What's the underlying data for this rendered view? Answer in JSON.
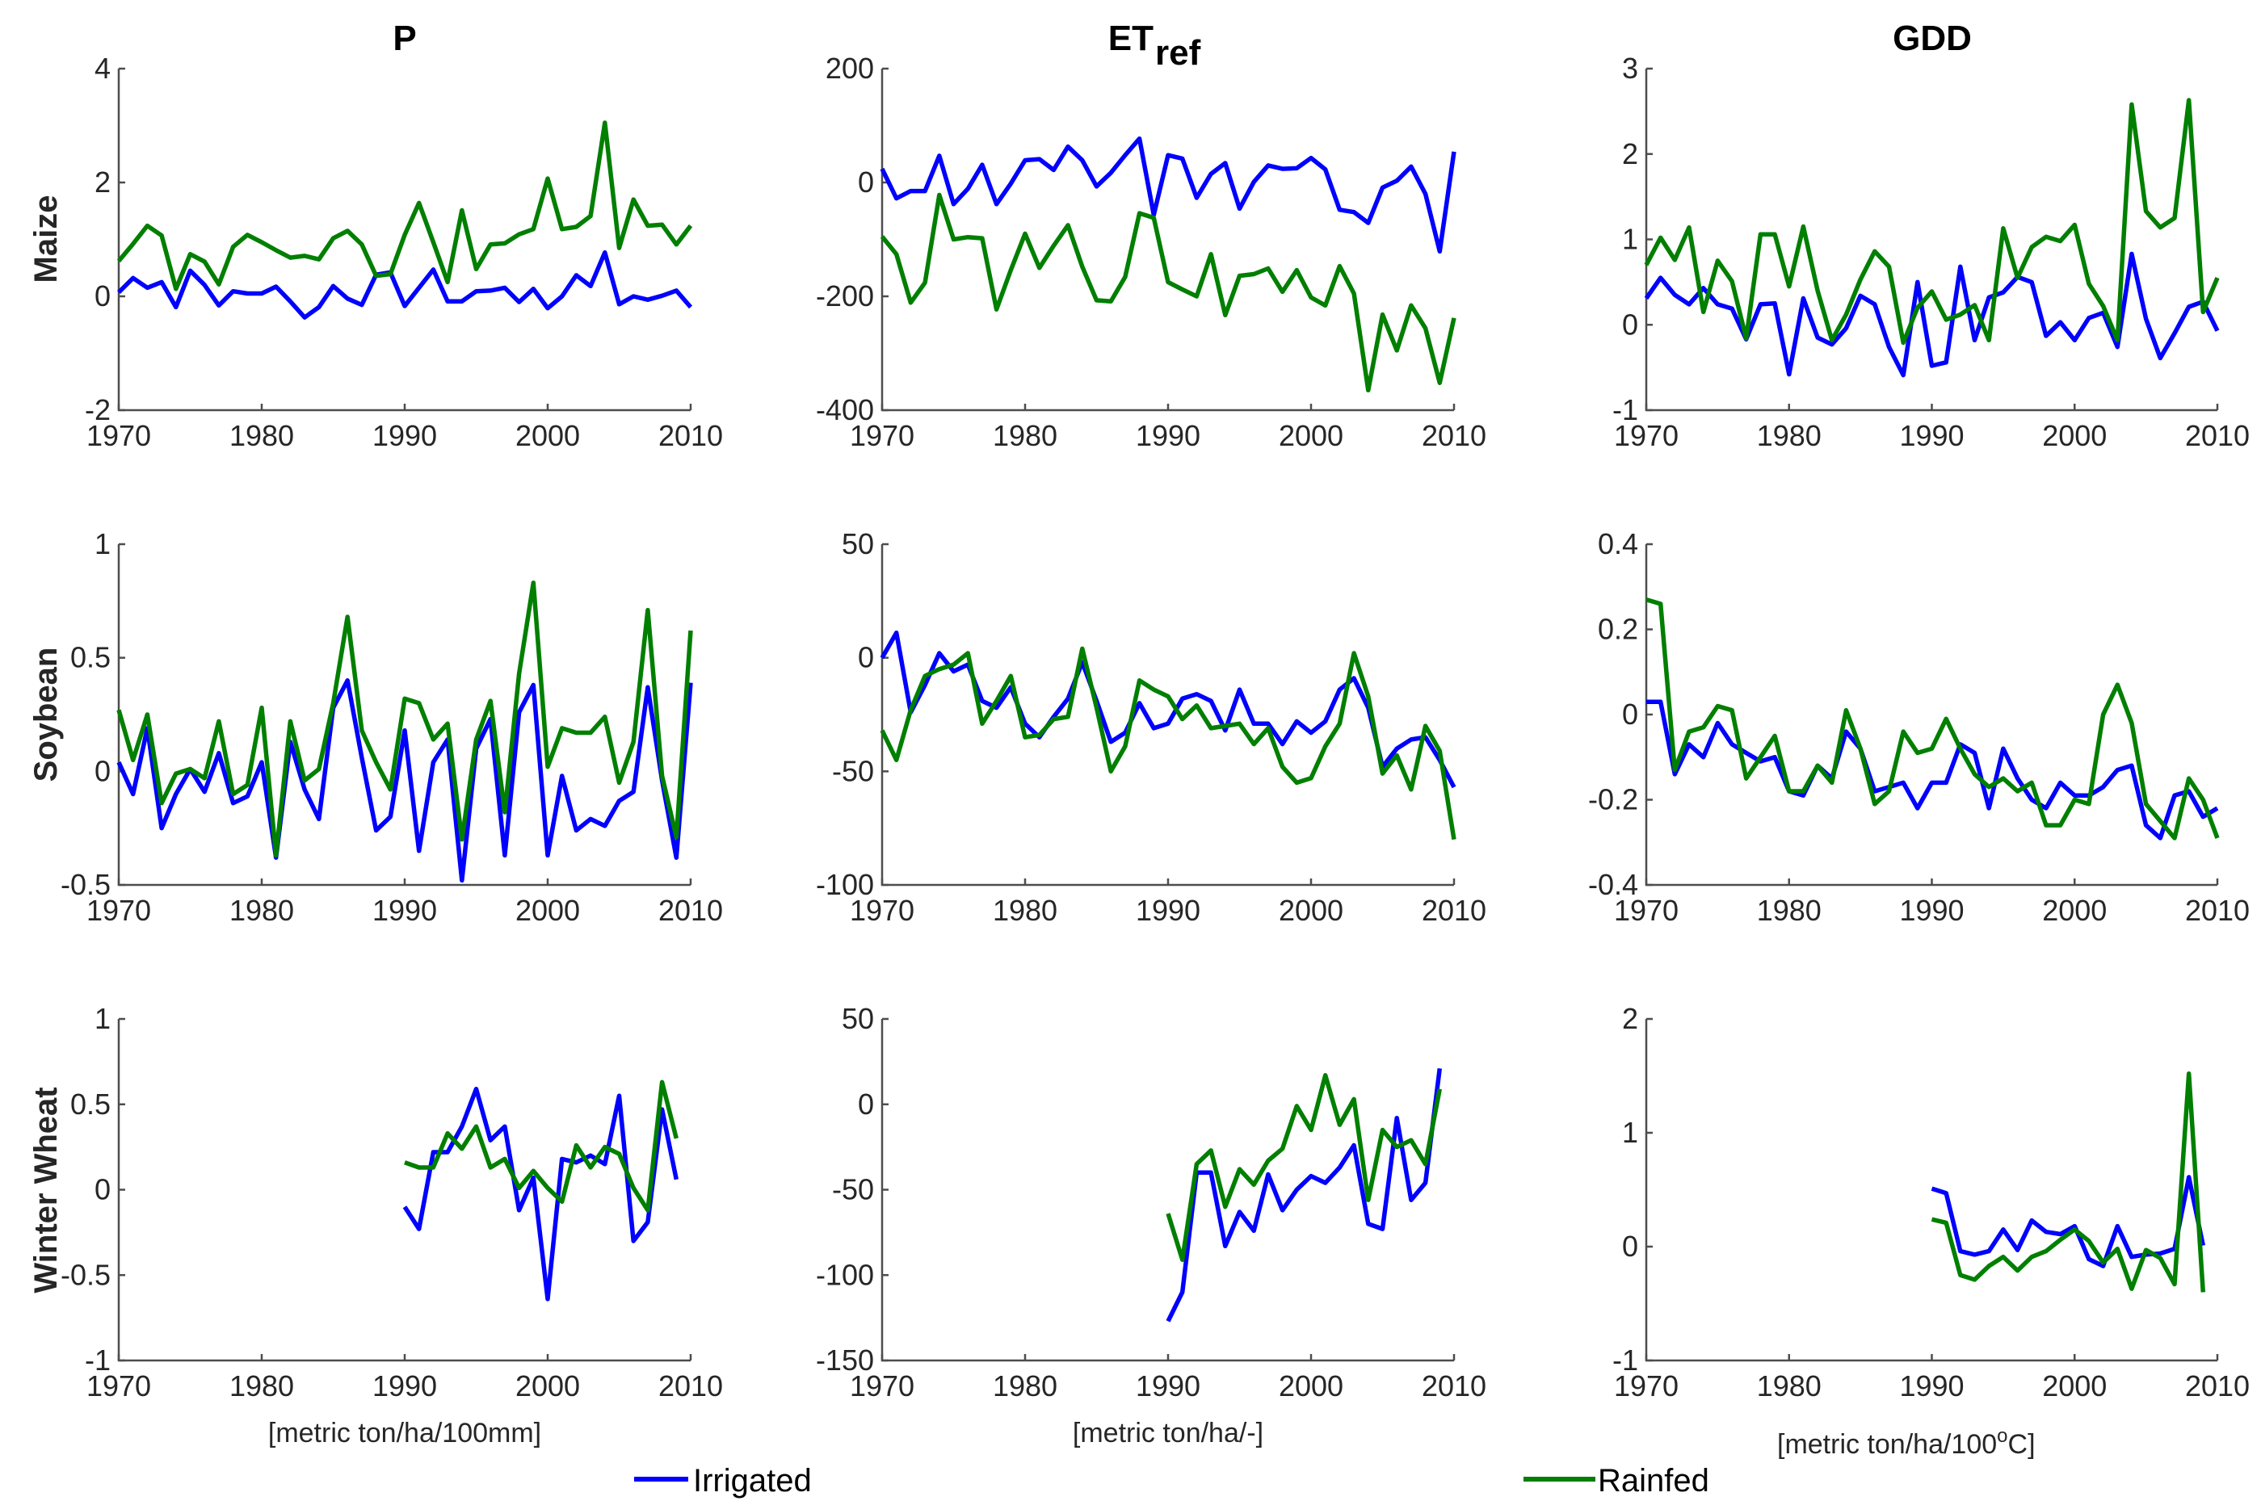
{
  "figure": {
    "legend": [
      {
        "name": "Irrigated",
        "color": "#0000ff"
      },
      {
        "name": "Rainfed",
        "color": "#007f00"
      }
    ],
    "column_titles": [
      {
        "main": "P",
        "sub": ""
      },
      {
        "main": "ET",
        "sub": "ref"
      },
      {
        "main": "GDD",
        "sub": ""
      }
    ],
    "row_titles": [
      "Maize",
      "Soybean",
      "Winter Wheat"
    ],
    "unit_labels": [
      {
        "text": "[metric ton/ha/100mm]",
        "sup": "",
        "tail": ""
      },
      {
        "text": "[metric ton/ha/-]",
        "sup": "",
        "tail": ""
      },
      {
        "text": "[metric ton/ha/100",
        "sup": "o",
        "tail": "C]"
      }
    ]
  },
  "chart_data": [
    {
      "type": "line",
      "title": "P",
      "ylabel": "Maize",
      "row": 0,
      "col": 0,
      "xlim": [
        1970,
        2010
      ],
      "xticks": [
        1970,
        1980,
        1990,
        2000,
        2010
      ],
      "ylim": [
        -2,
        4
      ],
      "yticks": [
        -2,
        0,
        2,
        4
      ],
      "ytick_labels": [
        "-2",
        "0",
        "2",
        "4"
      ],
      "x_start": 1970,
      "series": [
        {
          "name": "Irrigated",
          "values": [
            0.07,
            0.32,
            0.15,
            0.25,
            -0.19,
            0.45,
            0.2,
            -0.16,
            0.09,
            0.05,
            0.05,
            0.17,
            -0.09,
            -0.37,
            -0.19,
            0.18,
            -0.04,
            -0.15,
            0.38,
            0.42,
            -0.17,
            0.15,
            0.47,
            -0.09,
            -0.09,
            0.09,
            0.1,
            0.15,
            -0.1,
            0.13,
            -0.21,
            0.0,
            0.37,
            0.18,
            0.77,
            -0.14,
            0.0,
            -0.06,
            0.01,
            0.1,
            -0.19
          ]
        },
        {
          "name": "Rainfed",
          "values": [
            0.62,
            0.92,
            1.24,
            1.07,
            0.13,
            0.74,
            0.61,
            0.21,
            0.87,
            1.08,
            0.95,
            0.81,
            0.68,
            0.71,
            0.65,
            1.02,
            1.15,
            0.91,
            0.36,
            0.39,
            1.08,
            1.64,
            0.95,
            0.25,
            1.51,
            0.48,
            0.91,
            0.93,
            1.09,
            1.18,
            2.07,
            1.18,
            1.22,
            1.41,
            3.05,
            0.85,
            1.7,
            1.24,
            1.26,
            0.91,
            1.24
          ]
        }
      ]
    },
    {
      "type": "line",
      "title": "ETref",
      "ylabel": "Maize",
      "row": 0,
      "col": 1,
      "xlim": [
        1970,
        2010
      ],
      "xticks": [
        1970,
        1980,
        1990,
        2000,
        2010
      ],
      "ylim": [
        -400,
        200
      ],
      "yticks": [
        -400,
        -200,
        0,
        200
      ],
      "ytick_labels": [
        "-400",
        "-200",
        "0",
        "200"
      ],
      "x_start": 1970,
      "series": [
        {
          "name": "Irrigated",
          "values": [
            24,
            -28,
            -15,
            -15,
            47,
            -38,
            -11,
            31,
            -38,
            -2,
            39,
            41,
            22,
            63,
            39,
            -7,
            17,
            48,
            77,
            -57,
            48,
            42,
            -27,
            15,
            34,
            -46,
            1,
            30,
            24,
            25,
            43,
            23,
            -48,
            -52,
            -71,
            -9,
            3,
            28,
            -20,
            -121,
            54
          ]
        },
        {
          "name": "Rainfed",
          "values": [
            -95,
            -126,
            -211,
            -176,
            -22,
            -100,
            -96,
            -98,
            -223,
            -154,
            -90,
            -150,
            -111,
            -75,
            -148,
            -207,
            -209,
            -166,
            -54,
            -62,
            -175,
            -188,
            -200,
            -126,
            -233,
            -164,
            -161,
            -151,
            -192,
            -154,
            -202,
            -216,
            -147,
            -195,
            -365,
            -232,
            -295,
            -216,
            -256,
            -352,
            -238
          ]
        }
      ]
    },
    {
      "type": "line",
      "title": "GDD",
      "ylabel": "Maize",
      "row": 0,
      "col": 2,
      "xlim": [
        1970,
        2010
      ],
      "xticks": [
        1970,
        1980,
        1990,
        2000,
        2010
      ],
      "ylim": [
        -1,
        3
      ],
      "yticks": [
        -1,
        0,
        1,
        2,
        3
      ],
      "ytick_labels": [
        "-1",
        "0",
        "1",
        "2",
        "3"
      ],
      "x_start": 1970,
      "series": [
        {
          "name": "Irrigated",
          "values": [
            0.31,
            0.55,
            0.35,
            0.24,
            0.43,
            0.24,
            0.19,
            -0.17,
            0.24,
            0.25,
            -0.58,
            0.31,
            -0.15,
            -0.23,
            -0.04,
            0.34,
            0.24,
            -0.26,
            -0.59,
            0.5,
            -0.48,
            -0.44,
            0.68,
            -0.18,
            0.32,
            0.38,
            0.56,
            0.5,
            -0.13,
            0.03,
            -0.18,
            0.08,
            0.14,
            -0.26,
            0.83,
            0.07,
            -0.39,
            -0.1,
            0.21,
            0.27,
            -0.07
          ]
        },
        {
          "name": "Rainfed",
          "values": [
            0.7,
            1.02,
            0.76,
            1.14,
            0.15,
            0.75,
            0.51,
            -0.16,
            1.06,
            1.06,
            0.45,
            1.15,
            0.4,
            -0.18,
            0.12,
            0.53,
            0.86,
            0.68,
            -0.21,
            0.2,
            0.39,
            0.06,
            0.12,
            0.23,
            -0.18,
            1.13,
            0.55,
            0.91,
            1.03,
            0.98,
            1.17,
            0.48,
            0.22,
            -0.18,
            2.58,
            1.33,
            1.14,
            1.25,
            2.63,
            0.15,
            0.55
          ]
        }
      ]
    },
    {
      "type": "line",
      "title": "P",
      "ylabel": "Soybean",
      "row": 1,
      "col": 0,
      "xlim": [
        1970,
        2010
      ],
      "xticks": [
        1970,
        1980,
        1990,
        2000,
        2010
      ],
      "ylim": [
        -0.5,
        1
      ],
      "yticks": [
        -0.5,
        0,
        0.5,
        1
      ],
      "ytick_labels": [
        "-0.5",
        "0",
        "0.5",
        "1"
      ],
      "x_start": 1970,
      "series": [
        {
          "name": "Irrigated",
          "values": [
            0.04,
            -0.1,
            0.19,
            -0.25,
            -0.1,
            0.01,
            -0.09,
            0.08,
            -0.14,
            -0.11,
            0.04,
            -0.38,
            0.13,
            -0.08,
            -0.21,
            0.28,
            0.4,
            0.06,
            -0.26,
            -0.2,
            0.18,
            -0.35,
            0.04,
            0.14,
            -0.48,
            0.1,
            0.23,
            -0.37,
            0.26,
            0.38,
            -0.37,
            -0.02,
            -0.26,
            -0.21,
            -0.24,
            -0.13,
            -0.09,
            0.37,
            -0.04,
            -0.38,
            0.39
          ]
        },
        {
          "name": "Rainfed",
          "values": [
            0.27,
            0.05,
            0.25,
            -0.14,
            -0.01,
            0.01,
            -0.03,
            0.22,
            -0.1,
            -0.06,
            0.28,
            -0.37,
            0.22,
            -0.04,
            0.01,
            0.3,
            0.68,
            0.18,
            0.04,
            -0.08,
            0.32,
            0.3,
            0.14,
            0.21,
            -0.3,
            0.14,
            0.31,
            -0.18,
            0.43,
            0.83,
            0.02,
            0.19,
            0.17,
            0.17,
            0.24,
            -0.05,
            0.13,
            0.71,
            -0.02,
            -0.29,
            0.62
          ]
        }
      ]
    },
    {
      "type": "line",
      "title": "ETref",
      "ylabel": "Soybean",
      "row": 1,
      "col": 1,
      "xlim": [
        1970,
        2010
      ],
      "xticks": [
        1970,
        1980,
        1990,
        2000,
        2010
      ],
      "ylim": [
        -100,
        50
      ],
      "yticks": [
        -100,
        -50,
        0,
        50
      ],
      "ytick_labels": [
        "-100",
        "-50",
        "0",
        "50"
      ],
      "x_start": 1970,
      "series": [
        {
          "name": "Irrigated",
          "values": [
            0,
            11,
            -24,
            -12,
            2,
            -6,
            -3,
            -19,
            -22,
            -13,
            -29,
            -35,
            -26,
            -18,
            -2,
            -19,
            -37,
            -33,
            -20,
            -31,
            -29,
            -18,
            -16,
            -19,
            -32,
            -14,
            -29,
            -29,
            -38,
            -28,
            -33,
            -28,
            -14,
            -9,
            -22,
            -48,
            -40,
            -36,
            -35,
            -45,
            -57
          ]
        },
        {
          "name": "Rainfed",
          "values": [
            -32,
            -45,
            -23,
            -8,
            -5,
            -3,
            2,
            -29,
            -19,
            -8,
            -35,
            -34,
            -27,
            -26,
            4,
            -22,
            -50,
            -39,
            -10,
            -14,
            -17,
            -27,
            -21,
            -31,
            -30,
            -29,
            -38,
            -31,
            -48,
            -55,
            -53,
            -39,
            -29,
            2,
            -17,
            -51,
            -43,
            -58,
            -30,
            -41,
            -80
          ]
        }
      ]
    },
    {
      "type": "line",
      "title": "GDD",
      "ylabel": "Soybean",
      "row": 1,
      "col": 2,
      "xlim": [
        1970,
        2010
      ],
      "xticks": [
        1970,
        1980,
        1990,
        2000,
        2010
      ],
      "ylim": [
        -0.4,
        0.4
      ],
      "yticks": [
        -0.4,
        -0.2,
        0,
        0.2,
        0.4
      ],
      "ytick_labels": [
        "-0.4",
        "-0.2",
        "0",
        "0.2",
        "0.4"
      ],
      "x_start": 1970,
      "series": [
        {
          "name": "Irrigated",
          "values": [
            0.03,
            0.03,
            -0.14,
            -0.07,
            -0.1,
            -0.02,
            -0.07,
            -0.09,
            -0.11,
            -0.1,
            -0.18,
            -0.19,
            -0.12,
            -0.15,
            -0.04,
            -0.08,
            -0.18,
            -0.17,
            -0.16,
            -0.22,
            -0.16,
            -0.16,
            -0.07,
            -0.09,
            -0.22,
            -0.08,
            -0.15,
            -0.2,
            -0.22,
            -0.16,
            -0.19,
            -0.19,
            -0.17,
            -0.13,
            -0.12,
            -0.26,
            -0.29,
            -0.19,
            -0.18,
            -0.24,
            -0.22
          ]
        },
        {
          "name": "Rainfed",
          "values": [
            0.27,
            0.26,
            -0.13,
            -0.04,
            -0.03,
            0.02,
            0.01,
            -0.15,
            -0.1,
            -0.05,
            -0.18,
            -0.18,
            -0.12,
            -0.16,
            0.01,
            -0.08,
            -0.21,
            -0.18,
            -0.04,
            -0.09,
            -0.08,
            -0.01,
            -0.08,
            -0.14,
            -0.17,
            -0.15,
            -0.18,
            -0.16,
            -0.26,
            -0.26,
            -0.2,
            -0.21,
            0.0,
            0.07,
            -0.02,
            -0.21,
            -0.25,
            -0.29,
            -0.15,
            -0.2,
            -0.29
          ]
        }
      ]
    },
    {
      "type": "line",
      "title": "P",
      "ylabel": "Winter Wheat",
      "row": 2,
      "col": 0,
      "xlim": [
        1970,
        2010
      ],
      "xticks": [
        1970,
        1980,
        1990,
        2000,
        2010
      ],
      "ylim": [
        -1,
        1
      ],
      "yticks": [
        -1,
        -0.5,
        0,
        0.5,
        1
      ],
      "ytick_labels": [
        "-1",
        "-0.5",
        "0",
        "0.5",
        "1"
      ],
      "x_start": 1990,
      "series": [
        {
          "name": "Irrigated",
          "values": [
            -0.1,
            -0.23,
            0.22,
            0.22,
            0.37,
            0.59,
            0.29,
            0.37,
            -0.12,
            0.07,
            -0.64,
            0.18,
            0.16,
            0.2,
            0.15,
            0.55,
            -0.3,
            -0.19,
            0.47,
            0.06
          ]
        },
        {
          "name": "Rainfed",
          "values": [
            0.16,
            0.13,
            0.13,
            0.33,
            0.24,
            0.37,
            0.13,
            0.18,
            0.01,
            0.11,
            0.01,
            -0.07,
            0.26,
            0.13,
            0.25,
            0.21,
            0.01,
            -0.12,
            0.63,
            0.3
          ]
        }
      ]
    },
    {
      "type": "line",
      "title": "ETref",
      "ylabel": "Winter Wheat",
      "row": 2,
      "col": 1,
      "xlim": [
        1970,
        2010
      ],
      "xticks": [
        1970,
        1980,
        1990,
        2000,
        2010
      ],
      "ylim": [
        -150,
        50
      ],
      "yticks": [
        -150,
        -100,
        -50,
        0,
        50
      ],
      "ytick_labels": [
        "-150",
        "-100",
        "-50",
        "0",
        "50"
      ],
      "x_start": 1990,
      "series": [
        {
          "name": "Irrigated",
          "values": [
            -127,
            -110,
            -40,
            -40,
            -83,
            -63,
            -74,
            -41,
            -62,
            -50,
            -42,
            -46,
            -37,
            -24,
            -70,
            -73,
            -8,
            -56,
            -46,
            21
          ]
        },
        {
          "name": "Rainfed",
          "values": [
            -64,
            -91,
            -35,
            -27,
            -60,
            -38,
            -47,
            -33,
            -26,
            -1,
            -15,
            17,
            -12,
            3,
            -56,
            -15,
            -25,
            -21,
            -35,
            9
          ]
        }
      ]
    },
    {
      "type": "line",
      "title": "GDD",
      "ylabel": "Winter Wheat",
      "row": 2,
      "col": 2,
      "xlim": [
        1970,
        2010
      ],
      "xticks": [
        1970,
        1980,
        1990,
        2000,
        2010
      ],
      "ylim": [
        -1,
        2
      ],
      "yticks": [
        -1,
        0,
        1,
        2
      ],
      "ytick_labels": [
        "-1",
        "0",
        "1",
        "2"
      ],
      "x_start": 1990,
      "series": [
        {
          "name": "Irrigated",
          "values": [
            0.51,
            0.47,
            -0.04,
            -0.07,
            -0.04,
            0.15,
            -0.03,
            0.23,
            0.13,
            0.11,
            0.18,
            -0.11,
            -0.17,
            0.18,
            -0.09,
            -0.07,
            -0.06,
            -0.02,
            0.61,
            0.01
          ]
        },
        {
          "name": "Rainfed",
          "values": [
            0.24,
            0.21,
            -0.25,
            -0.29,
            -0.17,
            -0.09,
            -0.21,
            -0.09,
            -0.04,
            0.06,
            0.15,
            0.05,
            -0.14,
            -0.02,
            -0.37,
            -0.03,
            -0.1,
            -0.33,
            1.52,
            -0.4
          ]
        }
      ]
    }
  ]
}
